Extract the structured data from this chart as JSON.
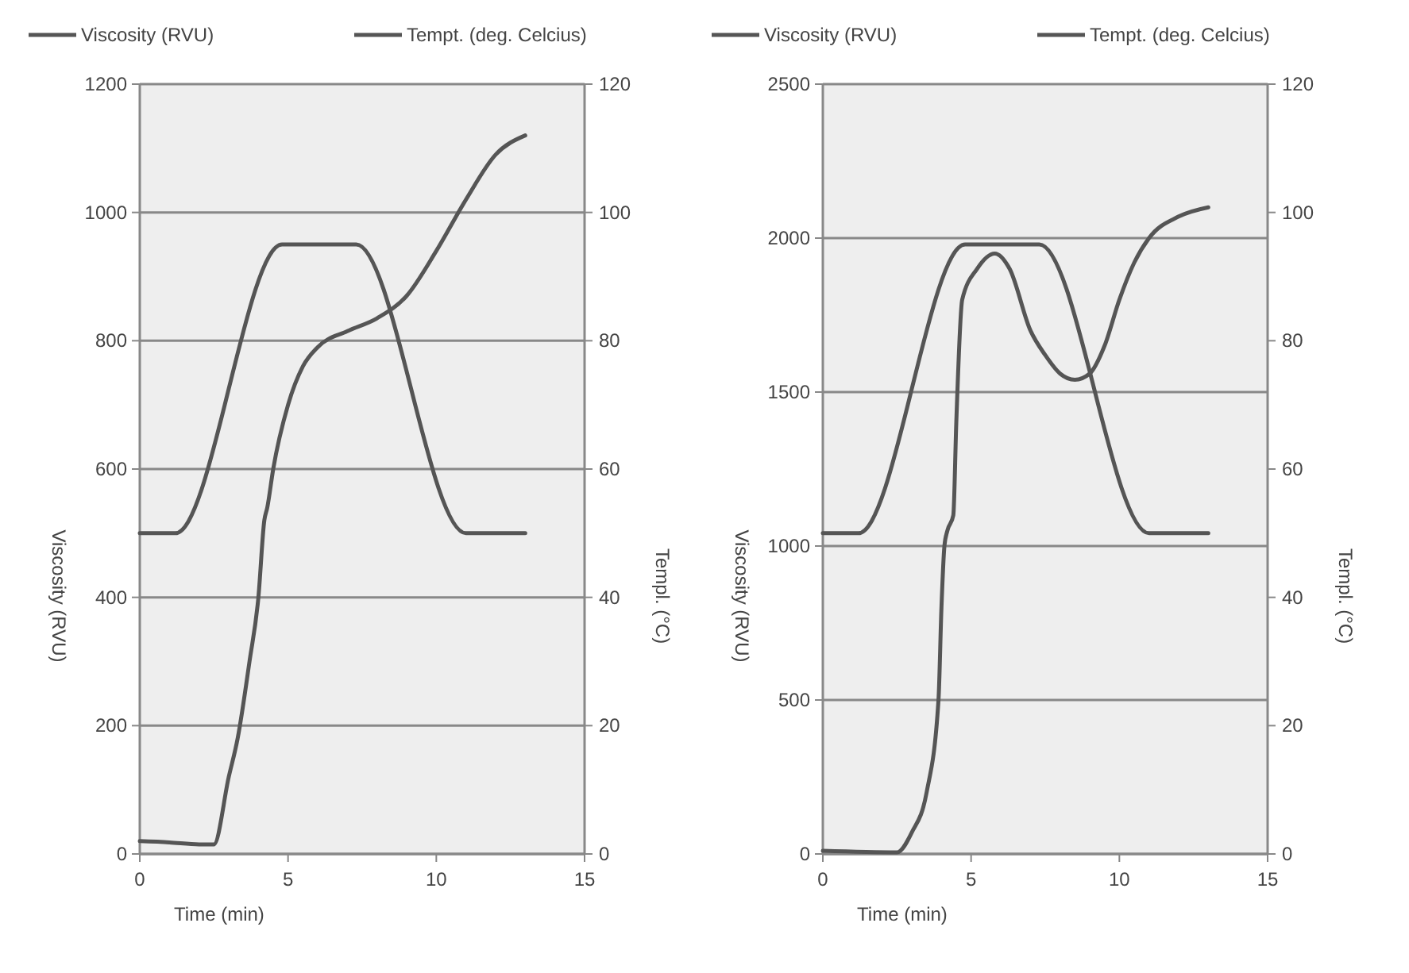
{
  "chart_data": [
    {
      "type": "line",
      "xlabel": "Time (min)",
      "ylabel": "Viscosity (RVU)",
      "y2label": "Templ. (°C)",
      "xlim": [
        0,
        15
      ],
      "xticks": [
        0,
        5,
        10,
        15
      ],
      "ylim": [
        0,
        1200
      ],
      "yticks": [
        0,
        200,
        400,
        600,
        800,
        1000,
        1200
      ],
      "y2lim": [
        0,
        120
      ],
      "y2ticks": [
        0,
        20,
        40,
        60,
        80,
        100,
        120
      ],
      "grid": "y",
      "legend": "top",
      "line_style": "solid",
      "series": [
        {
          "name": "Viscosity (RVU)",
          "color": "#555555",
          "x": [
            0,
            1,
            2,
            2.5,
            3,
            3.3,
            3.7,
            4,
            4.2,
            4.3,
            4.5,
            5,
            5.5,
            6,
            7,
            8,
            9,
            10,
            11,
            12,
            13
          ],
          "values": [
            20,
            18,
            15,
            15,
            120,
            180,
            300,
            400,
            520,
            540,
            600,
            700,
            760,
            790,
            815,
            835,
            870,
            940,
            1020,
            1090,
            1120
          ]
        },
        {
          "name": "Tempt. (deg. Celcius)",
          "color": "#555555",
          "axis": "y2",
          "x": [
            0,
            1.2,
            4.8,
            7.3,
            11,
            13
          ],
          "values": [
            50,
            50,
            95,
            95,
            50,
            50
          ]
        }
      ]
    },
    {
      "type": "line",
      "xlabel": "Time (min)",
      "ylabel": "Viscosity (RVU)",
      "y2label": "Templ. (°C)",
      "xlim": [
        0,
        15
      ],
      "xticks": [
        0,
        5,
        10,
        15
      ],
      "ylim": [
        0,
        2500
      ],
      "yticks": [
        0,
        500,
        1000,
        1500,
        2000,
        2500
      ],
      "y2lim": [
        0,
        120
      ],
      "y2ticks": [
        0,
        20,
        40,
        60,
        80,
        100,
        120
      ],
      "grid": "y",
      "legend": "top",
      "line_style": "solid",
      "series": [
        {
          "name": "Viscosity (RVU)",
          "color": "#555555",
          "x": [
            0,
            2.5,
            3,
            3.5,
            3.9,
            4,
            4.1,
            4.2,
            4.4,
            4.5,
            4.7,
            5.2,
            5.8,
            6.3,
            7,
            7.5,
            8,
            8.5,
            9,
            9.5,
            10,
            10.5,
            11,
            12,
            13
          ],
          "values": [
            10,
            5,
            70,
            200,
            500,
            800,
            1000,
            1050,
            1100,
            1400,
            1800,
            1900,
            1950,
            1900,
            1700,
            1620,
            1560,
            1540,
            1560,
            1650,
            1800,
            1920,
            2000,
            2070,
            2100
          ]
        },
        {
          "name": "Tempt. (deg. Celcius)",
          "color": "#555555",
          "axis": "y2",
          "x": [
            0,
            1.2,
            4.8,
            7.3,
            11,
            13
          ],
          "values": [
            50,
            50,
            95,
            95,
            50,
            50
          ]
        }
      ]
    }
  ]
}
